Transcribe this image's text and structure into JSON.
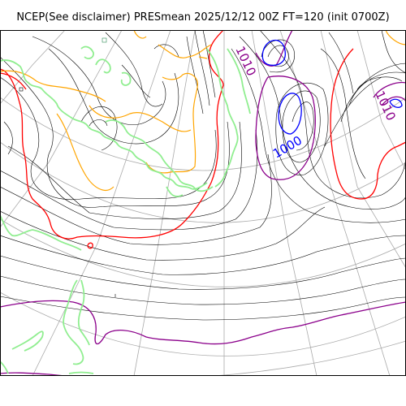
{
  "title": "NCEP(See disclaimer) PRESmean 2025/12/12 00Z FT=120 (init 0700Z)",
  "contour_labels": [
    {
      "text": "1010",
      "color": "#8b008b"
    },
    {
      "text": "1000",
      "color": "#0000ff"
    },
    {
      "text": "1010",
      "color": "#8b008b"
    }
  ],
  "colors": {
    "coastline": "#90ee90",
    "graticule": "#aaaaaa",
    "isobar": "#000000",
    "isobar_1000": "#0000ff",
    "isobar_1010": "#8b008b",
    "isobar_1020": "#ff0000",
    "isobar_1030": "#ffa500"
  }
}
